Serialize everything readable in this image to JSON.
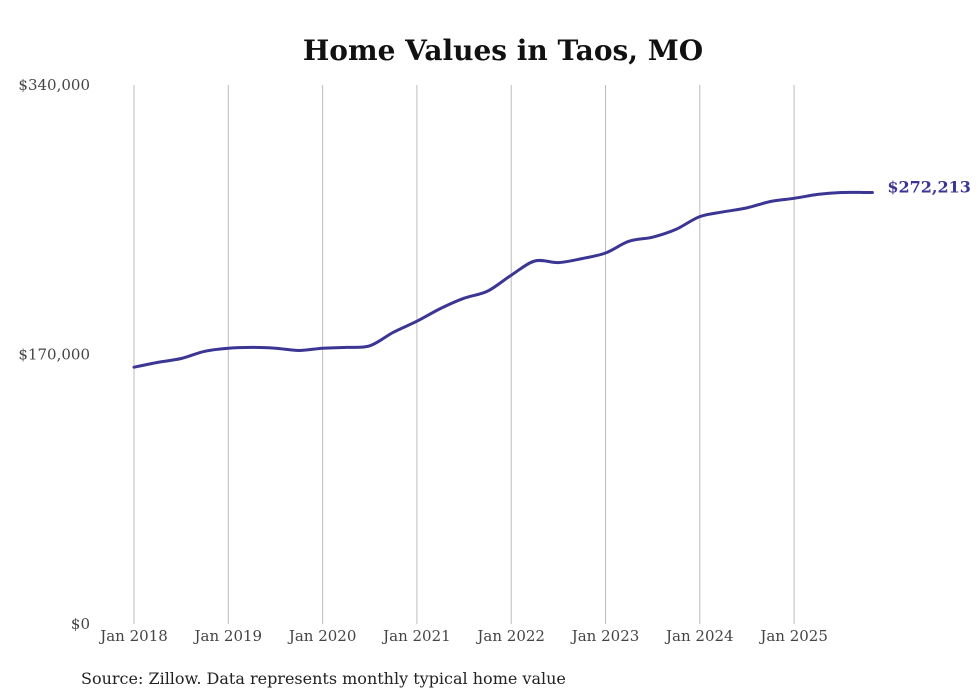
{
  "colors": {
    "line": "#3b3593",
    "grid": "#bdbdbd",
    "text": "#444444"
  },
  "source": "Source: Zillow. Data represents monthly typical home value",
  "chart_data": {
    "type": "line",
    "title": "Home Values in Taos, MO",
    "xlabel": "",
    "ylabel": "",
    "ylim": [
      0,
      340000
    ],
    "yticks": [
      0,
      170000,
      340000
    ],
    "ytick_labels": [
      "$0",
      "$170,000",
      "$340,000"
    ],
    "xticks": [
      "Jan 2018",
      "Jan 2019",
      "Jan 2020",
      "Jan 2021",
      "Jan 2022",
      "Jan 2023",
      "Jan 2024",
      "Jan 2025"
    ],
    "grid": "vertical",
    "end_label": "$272,213",
    "series": [
      {
        "name": "Typical home value",
        "x": [
          2018.0,
          2018.25,
          2018.5,
          2018.75,
          2019.0,
          2019.25,
          2019.5,
          2019.75,
          2020.0,
          2020.25,
          2020.5,
          2020.75,
          2021.0,
          2021.25,
          2021.5,
          2021.75,
          2022.0,
          2022.25,
          2022.5,
          2022.75,
          2023.0,
          2023.25,
          2023.5,
          2023.75,
          2024.0,
          2024.25,
          2024.5,
          2024.75,
          2025.0,
          2025.25,
          2025.5,
          2025.75,
          2025.83
        ],
        "values": [
          162000,
          165000,
          167500,
          172000,
          174000,
          174500,
          174000,
          172500,
          174000,
          174500,
          175500,
          184000,
          191000,
          199000,
          205500,
          210000,
          220000,
          229000,
          228000,
          230500,
          234000,
          241500,
          244000,
          249000,
          257000,
          260000,
          262500,
          266500,
          268500,
          271000,
          272213,
          272213,
          272213
        ]
      }
    ]
  }
}
